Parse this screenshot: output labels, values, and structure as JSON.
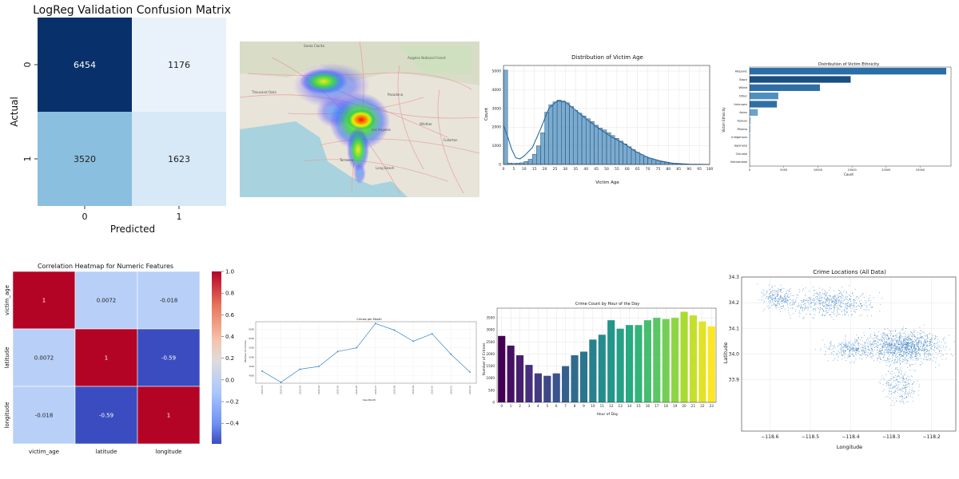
{
  "chart_data": [
    {
      "type": "heatmap",
      "title": "LogReg Validation Confusion Matrix",
      "xlabel": "Predicted",
      "ylabel": "Actual",
      "x_categories": [
        "0",
        "1"
      ],
      "y_categories": [
        "0",
        "1"
      ],
      "matrix": [
        [
          6454,
          1176
        ],
        [
          3520,
          1623
        ]
      ],
      "colors": {
        "high": "#08306b",
        "mid": "#7fb9dc",
        "low": "#e9f2fb"
      }
    },
    {
      "type": "map",
      "description_shown": "heat-density overlay on street map",
      "place_labels": [
        "Santa Clarita",
        "Angeles National Forest",
        "Thousand Oaks",
        "Pasadena",
        "Los Angeles",
        "Long Beach",
        "Torrance",
        "Fullerton",
        "Whittier"
      ]
    },
    {
      "type": "bar",
      "title": "Distribution of Victim Age",
      "xlabel": "Victim Age",
      "ylabel": "Count",
      "xlim": [
        0,
        100
      ],
      "ylim": [
        0,
        5300
      ],
      "xticks": [
        0,
        5,
        10,
        15,
        20,
        25,
        30,
        35,
        40,
        45,
        50,
        55,
        60,
        65,
        70,
        75,
        80,
        85,
        90,
        95,
        100
      ],
      "yticks": [
        0,
        1000,
        2000,
        3000,
        4000,
        5000
      ],
      "bin_width": 2,
      "bin_starts": [
        0,
        2,
        4,
        6,
        8,
        10,
        12,
        14,
        16,
        18,
        20,
        22,
        24,
        26,
        28,
        30,
        32,
        34,
        36,
        38,
        40,
        42,
        44,
        46,
        48,
        50,
        52,
        54,
        56,
        58,
        60,
        62,
        64,
        66,
        68,
        70,
        72,
        74,
        76,
        78,
        80,
        82,
        84,
        86,
        88,
        90,
        92,
        94,
        96,
        98
      ],
      "values": [
        5050,
        80,
        60,
        70,
        90,
        160,
        280,
        550,
        1000,
        1700,
        2800,
        3200,
        3350,
        3450,
        3400,
        3300,
        3100,
        2900,
        2750,
        2600,
        2450,
        2300,
        2100,
        1950,
        1850,
        1700,
        1550,
        1400,
        1250,
        1100,
        950,
        800,
        650,
        520,
        420,
        330,
        260,
        190,
        140,
        100,
        70,
        50,
        35,
        25,
        15,
        10,
        8,
        5,
        3,
        2
      ],
      "kde": [
        [
          0,
          2100
        ],
        [
          2,
          1500
        ],
        [
          4,
          800
        ],
        [
          6,
          350
        ],
        [
          8,
          300
        ],
        [
          10,
          450
        ],
        [
          14,
          900
        ],
        [
          18,
          1900
        ],
        [
          22,
          3000
        ],
        [
          26,
          3400
        ],
        [
          30,
          3350
        ],
        [
          34,
          3000
        ],
        [
          40,
          2450
        ],
        [
          46,
          1950
        ],
        [
          52,
          1500
        ],
        [
          58,
          1150
        ],
        [
          64,
          700
        ],
        [
          70,
          380
        ],
        [
          76,
          190
        ],
        [
          82,
          70
        ],
        [
          90,
          15
        ],
        [
          100,
          0
        ]
      ],
      "color": "#4e8fc0"
    },
    {
      "type": "bar",
      "orientation": "horizontal",
      "title": "Distribution of Victim Ethnicity",
      "xlabel": "Count",
      "ylabel": "Victim Ethnicity",
      "xlim": [
        0,
        29500
      ],
      "xticks": [
        0,
        5000,
        10000,
        15000,
        20000,
        25000
      ],
      "categories": [
        "Hispanic",
        "Black",
        "White",
        "Other",
        "Unknown",
        "Asian",
        "Korean",
        "Filipino",
        "Indigenous",
        "Japanese",
        "Chinese",
        "Vietnamese"
      ],
      "values": [
        28800,
        14800,
        10300,
        4200,
        4000,
        1200,
        120,
        100,
        50,
        40,
        30,
        20
      ],
      "colors": [
        "#2b6da6",
        "#1a4f82",
        "#2f6ea5",
        "#4f8fbd",
        "#2f6ea5",
        "#6aa3cb",
        "#7aaed1",
        "#7aaed1",
        "#7aaed1",
        "#7aaed1",
        "#7aaed1",
        "#7aaed1"
      ]
    },
    {
      "type": "heatmap",
      "title": "Correlation Heatmap for Numeric Features",
      "x_categories": [
        "victim_age",
        "latitude",
        "longitude"
      ],
      "y_categories": [
        "victim_age",
        "latitude",
        "longitude"
      ],
      "matrix": [
        [
          1,
          0.0072,
          -0.018
        ],
        [
          0.0072,
          1,
          -0.59
        ],
        [
          -0.018,
          -0.59,
          1
        ]
      ],
      "cell_labels": [
        [
          "1",
          "0.0072",
          "-0.018"
        ],
        [
          "0.0072",
          "1",
          "-0.59"
        ],
        [
          "-0.018",
          "-0.59",
          "1"
        ]
      ],
      "colorbar": {
        "min": -0.59,
        "max": 1.0,
        "ticks": [
          "1.0",
          "0.8",
          "0.6",
          "0.4",
          "0.2",
          "0.0",
          "−0.2",
          "−0.4"
        ],
        "tick_values": [
          1.0,
          0.8,
          0.6,
          0.4,
          0.2,
          0.0,
          -0.2,
          -0.4
        ]
      },
      "colors": {
        "pos": "#b40426",
        "neutral": "#dddcdc",
        "near_zero": "#b8cff8",
        "neg": "#3b4cc0"
      }
    },
    {
      "type": "line",
      "title": "Crimes per Month",
      "xlabel": "Year-Month",
      "ylabel": "Number of Crimes",
      "categories": [
        "2023-01",
        "2023-02",
        "2023-03",
        "2023-04",
        "2023-05",
        "2023-06",
        "2023-07",
        "2023-08",
        "2023-09",
        "2023-10",
        "2023-11",
        "2023-12"
      ],
      "values": [
        4250,
        3650,
        4350,
        4500,
        5300,
        5500,
        6800,
        6450,
        5850,
        6250,
        5150,
        4200
      ],
      "ylim": [
        3600,
        6900
      ],
      "yticks": [
        4000,
        4500,
        5000,
        5500,
        6000,
        6500
      ],
      "color": "#3a87c6"
    },
    {
      "type": "bar",
      "title": "Crime Count by Hour of the Day",
      "xlabel": "Hour of Day",
      "ylabel": "Number of Crimes",
      "categories": [
        "0",
        "1",
        "2",
        "3",
        "4",
        "5",
        "6",
        "7",
        "8",
        "9",
        "10",
        "11",
        "12",
        "13",
        "14",
        "15",
        "16",
        "17",
        "18",
        "19",
        "20",
        "21",
        "22",
        "23"
      ],
      "values": [
        2750,
        2350,
        1950,
        1550,
        1200,
        1100,
        1200,
        1500,
        1950,
        2100,
        2600,
        2800,
        3400,
        3050,
        3200,
        3200,
        3400,
        3500,
        3450,
        3500,
        3750,
        3600,
        3350,
        3150
      ],
      "ylim": [
        0,
        3900
      ],
      "yticks": [
        0,
        500,
        1000,
        1500,
        2000,
        2500,
        3000,
        3500
      ]
    },
    {
      "type": "scatter",
      "title": "Crime Locations (All Data)",
      "xlabel": "Longitude",
      "ylabel": "Latitude",
      "xlim": [
        -118.67,
        -118.14
      ],
      "ylim": [
        33.7,
        34.3
      ],
      "xticks": [
        "−118.6",
        "−118.5",
        "−118.4",
        "−118.3",
        "−118.2"
      ],
      "xtick_values": [
        -118.6,
        -118.5,
        -118.4,
        -118.3,
        -118.2
      ],
      "yticks": [
        "33.9",
        "34.0",
        "34.1",
        "34.2",
        "34.3"
      ],
      "ytick_values": [
        33.9,
        34.0,
        34.1,
        34.2,
        34.3
      ],
      "clusters": [
        {
          "lon": -118.27,
          "lat": 34.03,
          "spread_lon": 0.09,
          "spread_lat": 0.06,
          "n": 1300
        },
        {
          "lon": -118.45,
          "lat": 34.2,
          "spread_lon": 0.1,
          "spread_lat": 0.05,
          "n": 600
        },
        {
          "lon": -118.4,
          "lat": 34.02,
          "spread_lon": 0.06,
          "spread_lat": 0.04,
          "n": 300
        },
        {
          "lon": -118.28,
          "lat": 33.88,
          "spread_lon": 0.04,
          "spread_lat": 0.07,
          "n": 250
        },
        {
          "lon": -118.58,
          "lat": 34.22,
          "spread_lon": 0.04,
          "spread_lat": 0.04,
          "n": 250
        }
      ],
      "color": "#3a7fc0"
    }
  ]
}
